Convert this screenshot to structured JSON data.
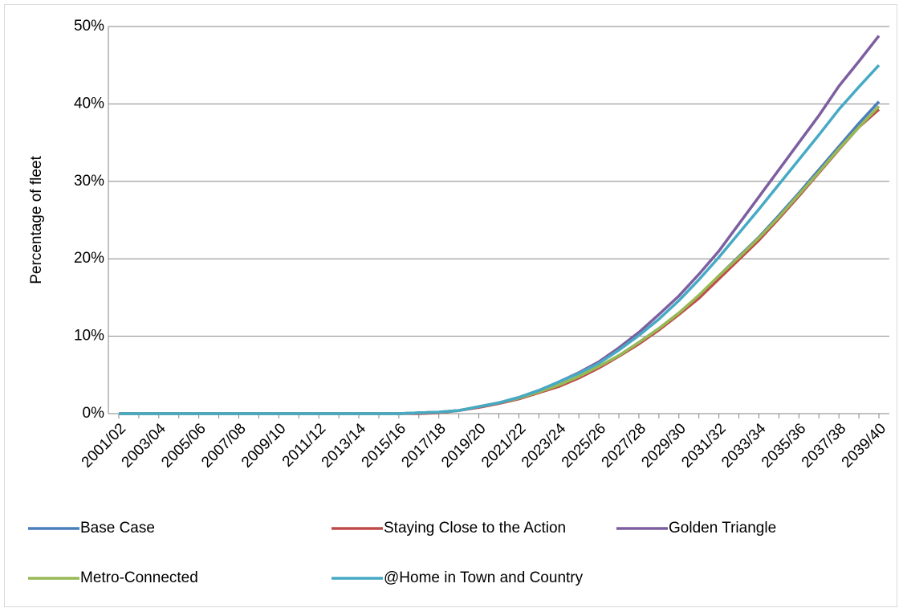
{
  "chart_data": {
    "type": "line",
    "y_label": "Percentage of fleet",
    "categories": [
      "2001/02",
      null,
      "2003/04",
      null,
      "2005/06",
      null,
      "2007/08",
      null,
      "2009/10",
      null,
      "2011/12",
      null,
      "2013/14",
      null,
      "2015/16",
      null,
      "2017/18",
      null,
      "2019/20",
      null,
      "2021/22",
      null,
      "2023/24",
      null,
      "2025/26",
      null,
      "2027/28",
      null,
      "2029/30",
      null,
      "2031/32",
      null,
      "2033/34",
      null,
      "2035/36",
      null,
      "2037/38",
      null,
      "2039/40"
    ],
    "ylim": [
      0,
      50
    ],
    "yticks": [
      {
        "value": 0,
        "label": "0%"
      },
      {
        "value": 10,
        "label": "10%"
      },
      {
        "value": 20,
        "label": "20%"
      },
      {
        "value": 30,
        "label": "30%"
      },
      {
        "value": 40,
        "label": "40%"
      },
      {
        "value": 50,
        "label": "50%"
      }
    ],
    "grid": true,
    "legend": "bottom",
    "series": [
      {
        "name": "Base Case",
        "color": "#4a7ebb",
        "values": [
          0,
          0,
          0,
          0,
          0,
          0,
          0,
          0,
          0,
          0,
          0,
          0,
          0,
          0,
          0,
          0.1,
          0.2,
          0.4,
          0.9,
          1.4,
          2.0,
          2.8,
          3.6,
          4.8,
          6.0,
          7.5,
          9.2,
          11.0,
          13.0,
          15.2,
          17.8,
          20.3,
          22.8,
          25.6,
          28.5,
          31.5,
          34.5,
          37.5,
          40.3
        ]
      },
      {
        "name": "Staying Close to the Action",
        "color": "#be4b48",
        "values": [
          0,
          0,
          0,
          0,
          0,
          0,
          0,
          0,
          0,
          0,
          0,
          0,
          0,
          0,
          0,
          0.0,
          0.1,
          0.4,
          0.8,
          1.3,
          1.9,
          2.7,
          3.5,
          4.6,
          5.9,
          7.4,
          9.0,
          10.8,
          12.8,
          14.9,
          17.4,
          19.9,
          22.4,
          25.2,
          28.1,
          31.1,
          34.1,
          37.0,
          39.3
        ]
      },
      {
        "name": "Golden Triangle",
        "color": "#7d5fa0",
        "values": [
          0,
          0,
          0,
          0,
          0,
          0,
          0,
          0,
          0,
          0,
          0,
          0,
          0,
          0,
          0,
          0.1,
          0.2,
          0.4,
          0.9,
          1.4,
          2.1,
          3.0,
          4.1,
          5.3,
          6.7,
          8.5,
          10.5,
          12.8,
          15.2,
          18.0,
          21.0,
          24.5,
          28.0,
          31.5,
          35.0,
          38.5,
          42.3,
          45.5,
          48.8
        ]
      },
      {
        "name": "Metro-Connected",
        "color": "#98b954",
        "values": [
          0,
          0,
          0,
          0,
          0,
          0,
          0,
          0,
          0,
          0,
          0,
          0,
          0,
          0,
          0,
          0.1,
          0.2,
          0.4,
          0.9,
          1.4,
          2.0,
          2.8,
          3.7,
          4.8,
          6.1,
          7.5,
          9.2,
          11.0,
          13.0,
          15.3,
          17.8,
          20.2,
          22.7,
          25.4,
          28.3,
          31.2,
          34.2,
          37.0,
          39.7
        ]
      },
      {
        "name": "@Home in Town and Country",
        "color": "#46aac5",
        "values": [
          0,
          0,
          0,
          0,
          0,
          0,
          0,
          0,
          0,
          0,
          0,
          0,
          0,
          0,
          0,
          0.1,
          0.2,
          0.4,
          0.9,
          1.4,
          2.1,
          3.0,
          4.1,
          5.2,
          6.5,
          8.2,
          10.1,
          12.2,
          14.6,
          17.3,
          20.2,
          23.3,
          26.4,
          29.6,
          32.8,
          36.0,
          39.3,
          42.2,
          45.0
        ]
      }
    ]
  }
}
